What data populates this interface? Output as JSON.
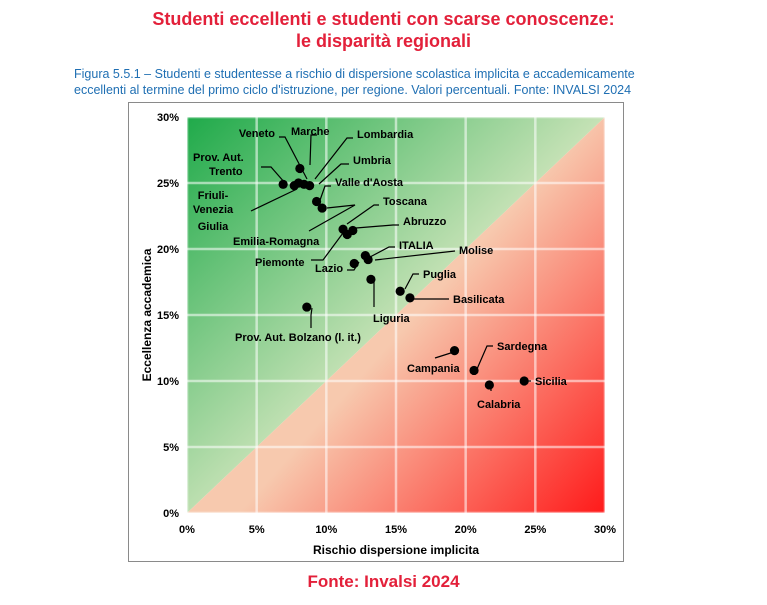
{
  "header": {
    "title_line1": "Studenti eccellenti e studenti con scarse conoscenze:",
    "title_line2": "le disparità regionali",
    "caption_line1": "Figura 5.5.1 – Studenti e studentesse a rischio di dispersione scolastica implicita e accademicamente",
    "caption_line2": "eccellenti al termine del primo ciclo d'istruzione, per regione. Valori percentuali. Fonte: INVALSI 2024"
  },
  "footer": {
    "source": "Fonte: Invalsi 2024"
  },
  "colors": {
    "title": "#e3203a",
    "caption": "#1f6fb3",
    "green_dark": "#1faa4a",
    "green_light": "#c9e3b8",
    "red_light": "#f7c9ae",
    "red_dark": "#ff1a1a",
    "point": "#000000",
    "grid": "#ffffff"
  },
  "chart_data": {
    "type": "scatter",
    "title": "",
    "xlabel": "Rischio dispersione implicita",
    "ylabel": "Eccellenza accademica",
    "xlim": [
      0,
      30
    ],
    "ylim": [
      0,
      30
    ],
    "xticks": [
      "0%",
      "5%",
      "10%",
      "15%",
      "20%",
      "25%",
      "30%"
    ],
    "yticks": [
      "0%",
      "5%",
      "10%",
      "15%",
      "20%",
      "25%",
      "30%"
    ],
    "grid": true,
    "points": [
      {
        "label": "Veneto",
        "x": 7.7,
        "y": 24.8
      },
      {
        "label": "Marche",
        "x": 8.1,
        "y": 26.1
      },
      {
        "label": "Lombardia",
        "x": 8.4,
        "y": 24.9
      },
      {
        "label": "Prov. Aut. Trento",
        "x": 6.9,
        "y": 24.9
      },
      {
        "label": "Umbria",
        "x": 8.8,
        "y": 24.8
      },
      {
        "label": "Friuli-Venezia Giulia",
        "x": 8.0,
        "y": 25.0
      },
      {
        "label": "Valle d'Aosta",
        "x": 9.3,
        "y": 23.6
      },
      {
        "label": "Emilia-Romagna",
        "x": 9.7,
        "y": 23.1
      },
      {
        "label": "Toscana",
        "x": 11.2,
        "y": 21.5
      },
      {
        "label": "Abruzzo",
        "x": 11.9,
        "y": 21.4
      },
      {
        "label": "Piemonte",
        "x": 11.5,
        "y": 21.1
      },
      {
        "label": "ITALIA",
        "x": 12.8,
        "y": 19.5
      },
      {
        "label": "Molise",
        "x": 13.0,
        "y": 19.2
      },
      {
        "label": "Lazio",
        "x": 12.0,
        "y": 18.9
      },
      {
        "label": "Liguria",
        "x": 13.2,
        "y": 17.7
      },
      {
        "label": "Puglia",
        "x": 15.3,
        "y": 16.8
      },
      {
        "label": "Basilicata",
        "x": 16.0,
        "y": 16.3
      },
      {
        "label": "Prov. Aut. Bolzano (l. it.)",
        "x": 8.6,
        "y": 15.6
      },
      {
        "label": "Campania",
        "x": 19.2,
        "y": 12.3
      },
      {
        "label": "Sardegna",
        "x": 20.6,
        "y": 10.8
      },
      {
        "label": "Calabria",
        "x": 21.7,
        "y": 9.7
      },
      {
        "label": "Sicilia",
        "x": 24.2,
        "y": 10.0
      }
    ]
  }
}
